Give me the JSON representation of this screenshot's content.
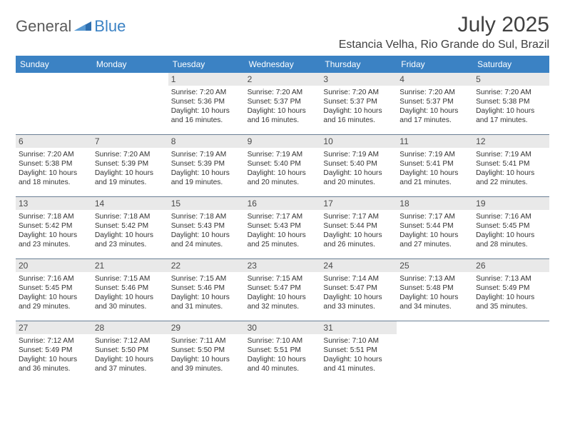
{
  "logo": {
    "part1": "General",
    "part2": "Blue"
  },
  "title": "July 2025",
  "location": "Estancia Velha, Rio Grande do Sul, Brazil",
  "colors": {
    "header_bg": "#3b82c4",
    "header_text": "#ffffff",
    "daynum_bg": "#e9e9e9",
    "rule": "#6a7f94",
    "text": "#333333",
    "title": "#404040"
  },
  "daysOfWeek": [
    "Sunday",
    "Monday",
    "Tuesday",
    "Wednesday",
    "Thursday",
    "Friday",
    "Saturday"
  ],
  "weeks": [
    [
      {
        "n": "",
        "sr": "",
        "ss": "",
        "d1": "",
        "d2": ""
      },
      {
        "n": "",
        "sr": "",
        "ss": "",
        "d1": "",
        "d2": ""
      },
      {
        "n": "1",
        "sr": "Sunrise: 7:20 AM",
        "ss": "Sunset: 5:36 PM",
        "d1": "Daylight: 10 hours",
        "d2": "and 16 minutes."
      },
      {
        "n": "2",
        "sr": "Sunrise: 7:20 AM",
        "ss": "Sunset: 5:37 PM",
        "d1": "Daylight: 10 hours",
        "d2": "and 16 minutes."
      },
      {
        "n": "3",
        "sr": "Sunrise: 7:20 AM",
        "ss": "Sunset: 5:37 PM",
        "d1": "Daylight: 10 hours",
        "d2": "and 16 minutes."
      },
      {
        "n": "4",
        "sr": "Sunrise: 7:20 AM",
        "ss": "Sunset: 5:37 PM",
        "d1": "Daylight: 10 hours",
        "d2": "and 17 minutes."
      },
      {
        "n": "5",
        "sr": "Sunrise: 7:20 AM",
        "ss": "Sunset: 5:38 PM",
        "d1": "Daylight: 10 hours",
        "d2": "and 17 minutes."
      }
    ],
    [
      {
        "n": "6",
        "sr": "Sunrise: 7:20 AM",
        "ss": "Sunset: 5:38 PM",
        "d1": "Daylight: 10 hours",
        "d2": "and 18 minutes."
      },
      {
        "n": "7",
        "sr": "Sunrise: 7:20 AM",
        "ss": "Sunset: 5:39 PM",
        "d1": "Daylight: 10 hours",
        "d2": "and 19 minutes."
      },
      {
        "n": "8",
        "sr": "Sunrise: 7:19 AM",
        "ss": "Sunset: 5:39 PM",
        "d1": "Daylight: 10 hours",
        "d2": "and 19 minutes."
      },
      {
        "n": "9",
        "sr": "Sunrise: 7:19 AM",
        "ss": "Sunset: 5:40 PM",
        "d1": "Daylight: 10 hours",
        "d2": "and 20 minutes."
      },
      {
        "n": "10",
        "sr": "Sunrise: 7:19 AM",
        "ss": "Sunset: 5:40 PM",
        "d1": "Daylight: 10 hours",
        "d2": "and 20 minutes."
      },
      {
        "n": "11",
        "sr": "Sunrise: 7:19 AM",
        "ss": "Sunset: 5:41 PM",
        "d1": "Daylight: 10 hours",
        "d2": "and 21 minutes."
      },
      {
        "n": "12",
        "sr": "Sunrise: 7:19 AM",
        "ss": "Sunset: 5:41 PM",
        "d1": "Daylight: 10 hours",
        "d2": "and 22 minutes."
      }
    ],
    [
      {
        "n": "13",
        "sr": "Sunrise: 7:18 AM",
        "ss": "Sunset: 5:42 PM",
        "d1": "Daylight: 10 hours",
        "d2": "and 23 minutes."
      },
      {
        "n": "14",
        "sr": "Sunrise: 7:18 AM",
        "ss": "Sunset: 5:42 PM",
        "d1": "Daylight: 10 hours",
        "d2": "and 23 minutes."
      },
      {
        "n": "15",
        "sr": "Sunrise: 7:18 AM",
        "ss": "Sunset: 5:43 PM",
        "d1": "Daylight: 10 hours",
        "d2": "and 24 minutes."
      },
      {
        "n": "16",
        "sr": "Sunrise: 7:17 AM",
        "ss": "Sunset: 5:43 PM",
        "d1": "Daylight: 10 hours",
        "d2": "and 25 minutes."
      },
      {
        "n": "17",
        "sr": "Sunrise: 7:17 AM",
        "ss": "Sunset: 5:44 PM",
        "d1": "Daylight: 10 hours",
        "d2": "and 26 minutes."
      },
      {
        "n": "18",
        "sr": "Sunrise: 7:17 AM",
        "ss": "Sunset: 5:44 PM",
        "d1": "Daylight: 10 hours",
        "d2": "and 27 minutes."
      },
      {
        "n": "19",
        "sr": "Sunrise: 7:16 AM",
        "ss": "Sunset: 5:45 PM",
        "d1": "Daylight: 10 hours",
        "d2": "and 28 minutes."
      }
    ],
    [
      {
        "n": "20",
        "sr": "Sunrise: 7:16 AM",
        "ss": "Sunset: 5:45 PM",
        "d1": "Daylight: 10 hours",
        "d2": "and 29 minutes."
      },
      {
        "n": "21",
        "sr": "Sunrise: 7:15 AM",
        "ss": "Sunset: 5:46 PM",
        "d1": "Daylight: 10 hours",
        "d2": "and 30 minutes."
      },
      {
        "n": "22",
        "sr": "Sunrise: 7:15 AM",
        "ss": "Sunset: 5:46 PM",
        "d1": "Daylight: 10 hours",
        "d2": "and 31 minutes."
      },
      {
        "n": "23",
        "sr": "Sunrise: 7:15 AM",
        "ss": "Sunset: 5:47 PM",
        "d1": "Daylight: 10 hours",
        "d2": "and 32 minutes."
      },
      {
        "n": "24",
        "sr": "Sunrise: 7:14 AM",
        "ss": "Sunset: 5:47 PM",
        "d1": "Daylight: 10 hours",
        "d2": "and 33 minutes."
      },
      {
        "n": "25",
        "sr": "Sunrise: 7:13 AM",
        "ss": "Sunset: 5:48 PM",
        "d1": "Daylight: 10 hours",
        "d2": "and 34 minutes."
      },
      {
        "n": "26",
        "sr": "Sunrise: 7:13 AM",
        "ss": "Sunset: 5:49 PM",
        "d1": "Daylight: 10 hours",
        "d2": "and 35 minutes."
      }
    ],
    [
      {
        "n": "27",
        "sr": "Sunrise: 7:12 AM",
        "ss": "Sunset: 5:49 PM",
        "d1": "Daylight: 10 hours",
        "d2": "and 36 minutes."
      },
      {
        "n": "28",
        "sr": "Sunrise: 7:12 AM",
        "ss": "Sunset: 5:50 PM",
        "d1": "Daylight: 10 hours",
        "d2": "and 37 minutes."
      },
      {
        "n": "29",
        "sr": "Sunrise: 7:11 AM",
        "ss": "Sunset: 5:50 PM",
        "d1": "Daylight: 10 hours",
        "d2": "and 39 minutes."
      },
      {
        "n": "30",
        "sr": "Sunrise: 7:10 AM",
        "ss": "Sunset: 5:51 PM",
        "d1": "Daylight: 10 hours",
        "d2": "and 40 minutes."
      },
      {
        "n": "31",
        "sr": "Sunrise: 7:10 AM",
        "ss": "Sunset: 5:51 PM",
        "d1": "Daylight: 10 hours",
        "d2": "and 41 minutes."
      },
      {
        "n": "",
        "sr": "",
        "ss": "",
        "d1": "",
        "d2": ""
      },
      {
        "n": "",
        "sr": "",
        "ss": "",
        "d1": "",
        "d2": ""
      }
    ]
  ]
}
